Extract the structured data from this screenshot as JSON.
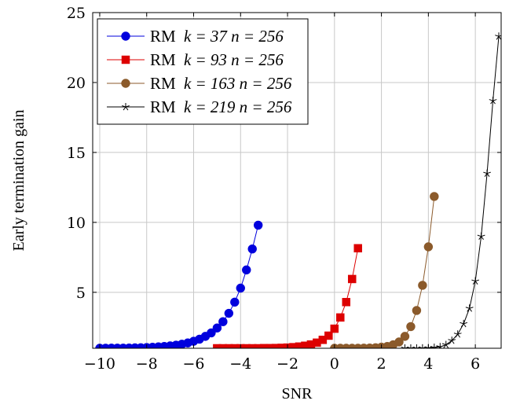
{
  "chart_data": {
    "type": "line",
    "xlabel": "SNR",
    "ylabel": "Early termination gain",
    "xlim": [
      -10.3,
      7.1
    ],
    "ylim": [
      1,
      25
    ],
    "xticks": [
      -10,
      -8,
      -6,
      -4,
      -2,
      0,
      2,
      4,
      6
    ],
    "xtick_labels": [
      "−10",
      "−8",
      "−6",
      "−4",
      "−2",
      "0",
      "2",
      "4",
      "6"
    ],
    "yticks": [
      5,
      10,
      15,
      20,
      25
    ],
    "ytick_labels": [
      "5",
      "10",
      "15",
      "20",
      "25"
    ],
    "grid": true,
    "legend_position": "top-left",
    "series": [
      {
        "name": "RM k = 37 n = 256",
        "label_prefix": "RM ",
        "label_math": "k = 37 n = 256",
        "color": "#0000dd",
        "marker": "circle",
        "x": [
          -10,
          -9.75,
          -9.5,
          -9.25,
          -9,
          -8.75,
          -8.5,
          -8.25,
          -8,
          -7.75,
          -7.5,
          -7.25,
          -7,
          -6.75,
          -6.5,
          -6.25,
          -6,
          -5.75,
          -5.5,
          -5.25,
          -5,
          -4.75,
          -4.5,
          -4.25,
          -4,
          -3.75,
          -3.5,
          -3.25
        ],
        "y": [
          1.0,
          1.0,
          1.01,
          1.01,
          1.01,
          1.02,
          1.03,
          1.04,
          1.05,
          1.07,
          1.1,
          1.13,
          1.17,
          1.22,
          1.29,
          1.38,
          1.5,
          1.65,
          1.85,
          2.1,
          2.45,
          2.9,
          3.5,
          4.3,
          5.3,
          6.6,
          8.1,
          9.8
        ]
      },
      {
        "name": "RM k = 93 n = 256",
        "label_prefix": "RM ",
        "label_math": "k = 93 n = 256",
        "color": "#dd0000",
        "marker": "square",
        "x": [
          -5,
          -4.75,
          -4.5,
          -4.25,
          -4,
          -3.75,
          -3.5,
          -3.25,
          -3,
          -2.75,
          -2.5,
          -2.25,
          -2,
          -1.75,
          -1.5,
          -1.25,
          -1,
          -0.75,
          -0.5,
          -0.25,
          0,
          0.25,
          0.5,
          0.75,
          1
        ],
        "y": [
          1.0,
          1.0,
          1.0,
          1.0,
          1.0,
          1.0,
          1.0,
          1.0,
          1.01,
          1.01,
          1.02,
          1.03,
          1.05,
          1.08,
          1.12,
          1.18,
          1.27,
          1.4,
          1.6,
          1.9,
          2.4,
          3.2,
          4.3,
          5.95,
          8.15
        ]
      },
      {
        "name": "RM k = 163 n = 256",
        "label_prefix": "RM ",
        "label_math": "k = 163 n = 256",
        "color": "#8b5a2b",
        "marker": "circle",
        "x": [
          0,
          0.25,
          0.5,
          0.75,
          1,
          1.25,
          1.5,
          1.75,
          2,
          2.25,
          2.5,
          2.75,
          3,
          3.25,
          3.5,
          3.75,
          4,
          4.25
        ],
        "y": [
          1.0,
          1.0,
          1.0,
          1.0,
          1.0,
          1.01,
          1.02,
          1.04,
          1.08,
          1.13,
          1.25,
          1.45,
          1.85,
          2.55,
          3.7,
          5.5,
          8.25,
          11.85
        ]
      },
      {
        "name": "RM k = 219 n = 256",
        "label_prefix": "RM ",
        "label_math": "k = 219 n = 256",
        "color": "#000000",
        "marker": "star",
        "x": [
          3,
          3.25,
          3.5,
          3.75,
          4,
          4.25,
          4.5,
          4.75,
          5,
          5.25,
          5.5,
          5.75,
          6,
          6.25,
          6.5,
          6.75,
          7
        ],
        "y": [
          1.0,
          1.0,
          1.0,
          1.01,
          1.02,
          1.05,
          1.1,
          1.25,
          1.55,
          2.0,
          2.75,
          3.85,
          5.8,
          9.0,
          13.5,
          18.7,
          23.3
        ]
      }
    ]
  }
}
